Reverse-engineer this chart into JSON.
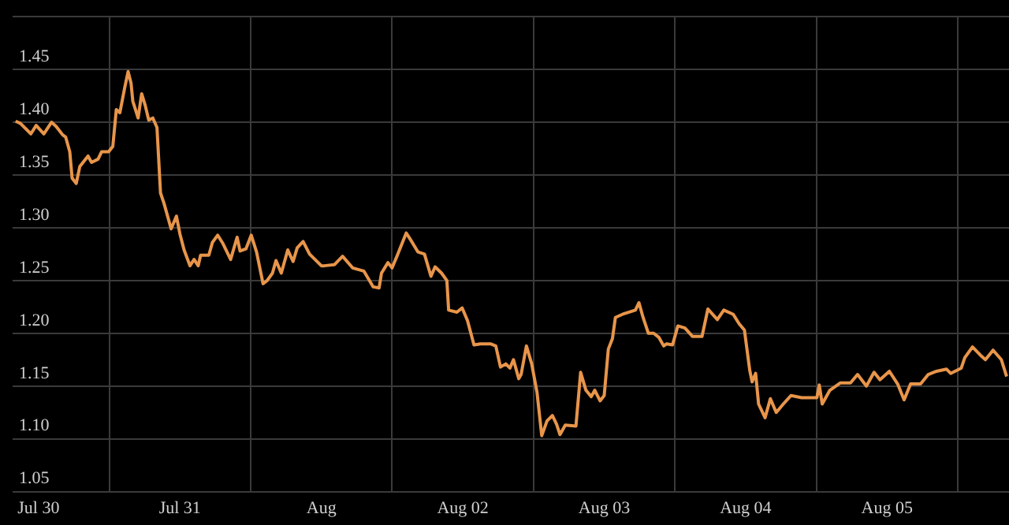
{
  "chart_data": {
    "type": "line",
    "xlim": [
      "--07-30T07:36",
      "--08-06T08:42"
    ],
    "ylim": [
      1.05,
      1.5
    ],
    "xticks": [
      {
        "value": "--07-30T12:00",
        "label": "Jul 30"
      },
      {
        "value": "--07-31T00:00",
        "label": null
      },
      {
        "value": "--07-31T12:00",
        "label": "Jul 31"
      },
      {
        "value": "--08-01T00:00",
        "label": null
      },
      {
        "value": "--08-01T12:00",
        "label": "Aug"
      },
      {
        "value": "--08-02T00:00",
        "label": null
      },
      {
        "value": "--08-02T12:00",
        "label": "Aug 02"
      },
      {
        "value": "--08-03T00:00",
        "label": null
      },
      {
        "value": "--08-03T12:00",
        "label": "Aug 03"
      },
      {
        "value": "--08-04T00:00",
        "label": null
      },
      {
        "value": "--08-04T12:00",
        "label": "Aug 04"
      },
      {
        "value": "--08-05T00:00",
        "label": null
      },
      {
        "value": "--08-05T12:00",
        "label": "Aug 05"
      },
      {
        "value": "--08-06T00:00",
        "label": null
      }
    ],
    "yticks": [
      1.05,
      {
        "value": 1.1,
        "label": "1.10"
      },
      1.15,
      {
        "value": 1.2,
        "label": "1.20"
      },
      1.25,
      {
        "value": 1.3,
        "label": "1.30"
      },
      1.35,
      {
        "value": 1.4,
        "label": "1.40"
      },
      1.45,
      {
        "value": 1.5,
        "label": null
      }
    ],
    "grid": true,
    "legend": false,
    "marker": "none",
    "line_style": "solid",
    "series": [
      {
        "color": "#e8954a",
        "x": [
          "--07-30T08:06",
          "--07-30T08:54",
          "--07-30T10:42",
          "--07-30T11:36",
          "--07-30T12:54",
          "--07-30T14:12",
          "--07-30T15:00",
          "--07-30T16:06",
          "--07-30T16:36",
          "--07-30T17:18",
          "--07-30T17:42",
          "--07-30T18:24",
          "--07-30T19:00",
          "--07-30T20:24",
          "--07-30T21:00",
          "--07-30T22:06",
          "--07-30T22:42",
          "--07-30T23:54",
          "--07-31T00:36",
          "--07-31T01:12",
          "--07-31T01:48",
          "--07-31T02:36",
          "--07-31T03:12",
          "--07-31T03:42",
          "--07-31T04:00",
          "--07-31T04:54",
          "--07-31T05:30",
          "--07-31T06:06",
          "--07-31T06:42",
          "--07-31T07:24",
          "--07-31T08:06",
          "--07-31T08:42",
          "--07-31T09:18",
          "--07-31T10:30",
          "--07-31T11:24",
          "--07-31T12:00",
          "--07-31T12:42",
          "--07-31T13:42",
          "--07-31T14:24",
          "--07-31T15:06",
          "--07-31T15:30",
          "--07-31T16:54",
          "--07-31T17:30",
          "--07-31T18:24",
          "--07-31T19:18",
          "--07-31T20:36",
          "--07-31T21:42",
          "--07-31T22:12",
          "--07-31T23:12",
          "--08-01T00:06",
          "--08-01T01:00",
          "--08-01T02:06",
          "--08-01T02:48",
          "--08-01T03:42",
          "--08-01T04:18",
          "--08-01T05:12",
          "--08-01T06:18",
          "--08-01T07:12",
          "--08-01T07:54",
          "--08-01T08:54",
          "--08-01T10:00",
          "--08-01T12:00",
          "--08-01T12:30",
          "--08-01T14:12",
          "--08-01T15:36",
          "--08-01T17:18",
          "--08-01T19:12",
          "--08-01T20:48",
          "--08-01T21:48",
          "--08-01T22:12",
          "--08-01T23:18",
          "--08-02T00:00",
          "--08-02T00:54",
          "--08-02T02:24",
          "--08-02T03:06",
          "--08-02T04:24",
          "--08-02T05:30",
          "--08-02T06:36",
          "--08-02T07:18",
          "--08-02T08:24",
          "--08-02T09:18",
          "--08-02T09:36",
          "--08-02T11:00",
          "--08-02T11:54",
          "--08-02T12:48",
          "--08-02T13:54",
          "--08-02T15:00",
          "--08-02T16:42",
          "--08-02T17:36",
          "--08-02T18:24",
          "--08-02T19:18",
          "--08-02T20:00",
          "--08-02T20:36",
          "--08-02T21:30",
          "--08-02T21:54",
          "--08-02T22:48",
          "--08-02T23:42",
          "--08-03T00:36",
          "--08-03T01:24",
          "--08-03T02:18",
          "--08-03T03:12",
          "--08-03T03:54",
          "--08-03T04:30",
          "--08-03T05:24",
          "--08-03T07:12",
          "--08-03T08:00",
          "--08-03T08:54",
          "--08-03T09:48",
          "--08-03T10:24",
          "--08-03T11:18",
          "--08-03T12:00",
          "--08-03T12:42",
          "--08-03T13:24",
          "--08-03T13:54",
          "--08-03T15:06",
          "--08-03T17:18",
          "--08-03T17:54",
          "--08-03T18:36",
          "--08-03T19:30",
          "--08-03T20:24",
          "--08-03T21:18",
          "--08-03T22:06",
          "--08-03T22:36",
          "--08-03T23:36",
          "--08-04T00:30",
          "--08-04T01:42",
          "--08-04T03:00",
          "--08-04T04:36",
          "--08-04T05:36",
          "--08-04T07:12",
          "--08-04T08:18",
          "--08-04T09:54",
          "--08-04T10:54",
          "--08-04T11:48",
          "--08-04T12:42",
          "--08-04T13:06",
          "--08-04T13:42",
          "--08-04T14:12",
          "--08-04T15:18",
          "--08-04T16:12",
          "--08-04T17:12",
          "--08-04T18:24",
          "--08-04T19:42",
          "--08-04T21:30",
          "--08-05T00:06",
          "--08-05T00:30",
          "--08-05T01:00",
          "--08-05T02:18",
          "--08-05T04:06",
          "--08-05T05:48",
          "--08-05T07:00",
          "--08-05T08:30",
          "--08-05T09:48",
          "--08-05T10:48",
          "--08-05T12:24",
          "--08-05T13:48",
          "--08-05T14:54",
          "--08-05T16:00",
          "--08-05T17:42",
          "--08-05T19:00",
          "--08-05T20:24",
          "--08-05T22:06",
          "--08-05T22:48",
          "--08-06T00:36",
          "--08-06T01:12",
          "--08-06T02:30",
          "--08-06T03:54",
          "--08-06T04:42",
          "--08-06T06:00",
          "--08-06T07:24",
          "--08-06T08:18"
        ],
        "values": [
          1.401,
          1.399,
          1.389,
          1.397,
          1.389,
          1.4,
          1.396,
          1.388,
          1.386,
          1.372,
          1.347,
          1.342,
          1.358,
          1.368,
          1.362,
          1.365,
          1.372,
          1.372,
          1.377,
          1.412,
          1.409,
          1.432,
          1.448,
          1.437,
          1.42,
          1.404,
          1.427,
          1.416,
          1.402,
          1.404,
          1.395,
          1.333,
          1.323,
          1.299,
          1.311,
          1.294,
          1.279,
          1.264,
          1.27,
          1.264,
          1.274,
          1.274,
          1.286,
          1.293,
          1.285,
          1.27,
          1.291,
          1.278,
          1.28,
          1.293,
          1.277,
          1.247,
          1.25,
          1.257,
          1.269,
          1.257,
          1.279,
          1.268,
          1.281,
          1.287,
          1.275,
          1.264,
          1.264,
          1.265,
          1.273,
          1.262,
          1.259,
          1.244,
          1.243,
          1.257,
          1.267,
          1.262,
          1.274,
          1.295,
          1.289,
          1.277,
          1.275,
          1.254,
          1.263,
          1.257,
          1.25,
          1.222,
          1.22,
          1.224,
          1.212,
          1.189,
          1.19,
          1.19,
          1.188,
          1.168,
          1.171,
          1.167,
          1.175,
          1.157,
          1.161,
          1.188,
          1.171,
          1.144,
          1.103,
          1.117,
          1.122,
          1.114,
          1.104,
          1.113,
          1.112,
          1.163,
          1.146,
          1.14,
          1.146,
          1.136,
          1.141,
          1.185,
          1.195,
          1.215,
          1.218,
          1.222,
          1.229,
          1.215,
          1.2,
          1.2,
          1.196,
          1.188,
          1.19,
          1.189,
          1.207,
          1.205,
          1.197,
          1.197,
          1.223,
          1.213,
          1.222,
          1.218,
          1.209,
          1.203,
          1.165,
          1.154,
          1.162,
          1.133,
          1.12,
          1.138,
          1.125,
          1.133,
          1.141,
          1.139,
          1.139,
          1.151,
          1.133,
          1.146,
          1.153,
          1.153,
          1.161,
          1.15,
          1.163,
          1.156,
          1.164,
          1.152,
          1.137,
          1.152,
          1.152,
          1.161,
          1.164,
          1.166,
          1.162,
          1.167,
          1.177,
          1.187,
          1.179,
          1.175,
          1.184,
          1.175,
          1.159
        ]
      }
    ]
  }
}
